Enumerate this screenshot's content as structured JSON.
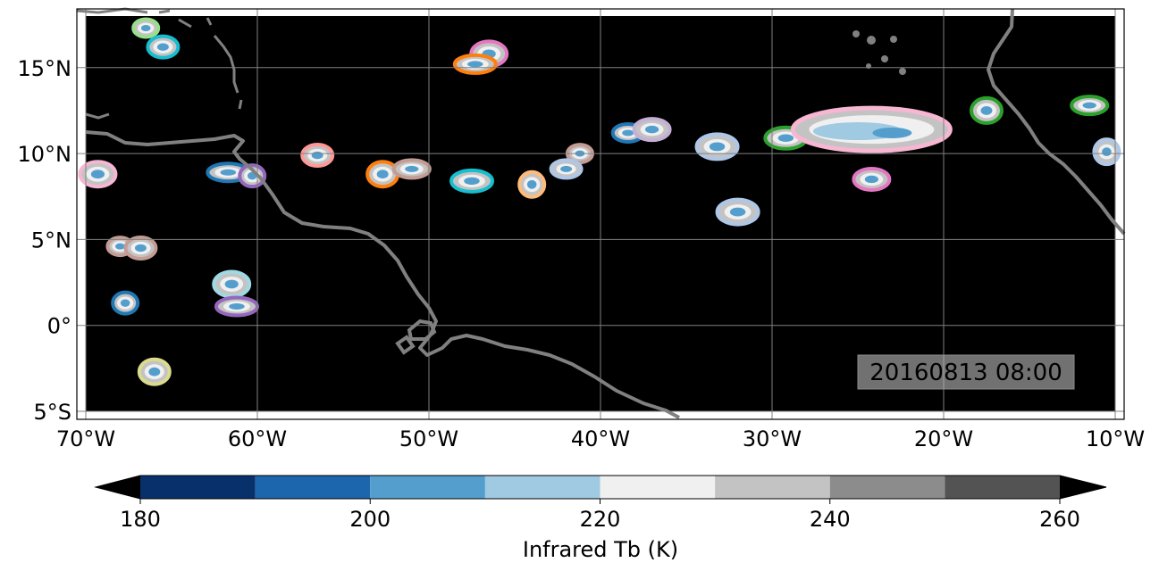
{
  "map": {
    "extent": {
      "lon": [
        -70,
        -10
      ],
      "lat": [
        -5,
        18
      ]
    },
    "lon_ticks": [
      {
        "value": -70,
        "label": "70°W"
      },
      {
        "value": -60,
        "label": "60°W"
      },
      {
        "value": -50,
        "label": "50°W"
      },
      {
        "value": -40,
        "label": "40°W"
      },
      {
        "value": -30,
        "label": "30°W"
      },
      {
        "value": -20,
        "label": "20°W"
      },
      {
        "value": -10,
        "label": "10°W"
      }
    ],
    "lat_ticks": [
      {
        "value": 15,
        "label": "15°N"
      },
      {
        "value": 10,
        "label": "10°N"
      },
      {
        "value": 5,
        "label": "5°N"
      },
      {
        "value": 0,
        "label": "0°"
      },
      {
        "value": -5,
        "label": "5°S"
      }
    ],
    "gridlines": true,
    "background_color": "#000000",
    "coastline_color": "#808080",
    "timestamp": "20160813 08:00",
    "systems": [
      {
        "lon": -66.5,
        "lat": 17.3,
        "color": "#98df8a"
      },
      {
        "lon": -65.5,
        "lat": 16.2,
        "color": "#17becf"
      },
      {
        "lon": -46.5,
        "lat": 15.8,
        "color": "#e377c2"
      },
      {
        "lon": -47.3,
        "lat": 15.2,
        "color": "#ff7f0e"
      },
      {
        "lon": -24.0,
        "lat": 11.5,
        "color": "#f7b6d2"
      },
      {
        "lon": -17.5,
        "lat": 12.5,
        "color": "#2ca02c"
      },
      {
        "lon": -11.5,
        "lat": 12.8,
        "color": "#2ca02c"
      },
      {
        "lon": -29.2,
        "lat": 10.9,
        "color": "#2ca02c"
      },
      {
        "lon": -10.5,
        "lat": 10.1,
        "color": "#aec7e8"
      },
      {
        "lon": -38.4,
        "lat": 11.2,
        "color": "#1f77b4"
      },
      {
        "lon": -37.0,
        "lat": 11.4,
        "color": "#c5b0d5"
      },
      {
        "lon": -33.2,
        "lat": 10.4,
        "color": "#aec7e8"
      },
      {
        "lon": -41.2,
        "lat": 10.0,
        "color": "#c49c94"
      },
      {
        "lon": -56.5,
        "lat": 9.9,
        "color": "#ff9896"
      },
      {
        "lon": -69.3,
        "lat": 8.8,
        "color": "#f7b6d2"
      },
      {
        "lon": -61.7,
        "lat": 8.9,
        "color": "#1f77b4"
      },
      {
        "lon": -60.3,
        "lat": 8.7,
        "color": "#9467bd"
      },
      {
        "lon": -52.7,
        "lat": 8.8,
        "color": "#ff7f0e"
      },
      {
        "lon": -51.0,
        "lat": 9.1,
        "color": "#c49c94"
      },
      {
        "lon": -47.5,
        "lat": 8.4,
        "color": "#17becf"
      },
      {
        "lon": -44.0,
        "lat": 8.2,
        "color": "#ffbb78"
      },
      {
        "lon": -42.0,
        "lat": 9.1,
        "color": "#aec7e8"
      },
      {
        "lon": -24.2,
        "lat": 8.5,
        "color": "#e377c2"
      },
      {
        "lon": -32.0,
        "lat": 6.6,
        "color": "#aec7e8"
      },
      {
        "lon": -68.0,
        "lat": 4.6,
        "color": "#c49c94"
      },
      {
        "lon": -66.8,
        "lat": 4.5,
        "color": "#c49c94"
      },
      {
        "lon": -61.5,
        "lat": 2.4,
        "color": "#9edae5"
      },
      {
        "lon": -61.2,
        "lat": 1.1,
        "color": "#9467bd"
      },
      {
        "lon": -67.7,
        "lat": 1.3,
        "color": "#1f77b4"
      },
      {
        "lon": -66.0,
        "lat": -2.7,
        "color": "#dbdb8d"
      }
    ]
  },
  "colorbar": {
    "label": "Infrared Tb (K)",
    "bounds": [
      180,
      190,
      200,
      210,
      220,
      230,
      240,
      250,
      260
    ],
    "colors": [
      "#08306b",
      "#1c66ad",
      "#549ecd",
      "#9fcae1",
      "#f0f0f0",
      "#c3c3c3",
      "#8c8c8c",
      "#535353"
    ],
    "under_color": "#000000",
    "over_color": "#000000",
    "tick_values": [
      180,
      200,
      220,
      240,
      260
    ],
    "tick_labels": [
      "180",
      "200",
      "220",
      "240",
      "260"
    ]
  }
}
